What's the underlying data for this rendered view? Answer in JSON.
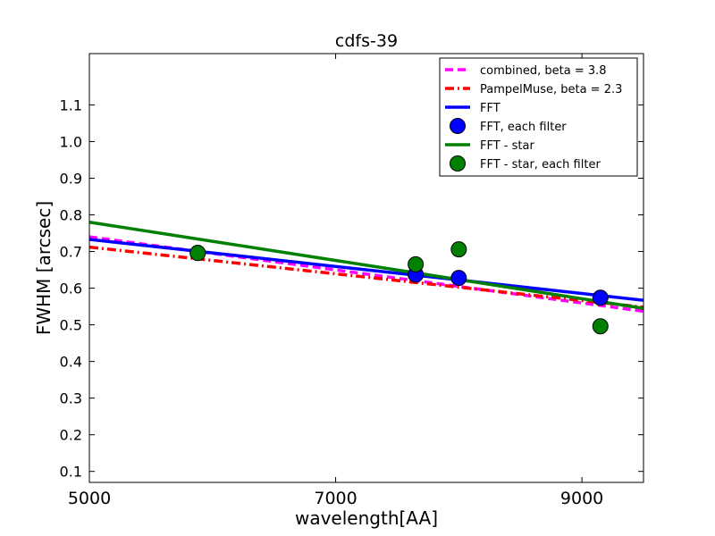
{
  "chart_data": {
    "type": "line",
    "title": "cdfs-39",
    "xlabel": "wavelength[AA]",
    "ylabel": "FWHM [arcsec]",
    "xlim": [
      5000,
      9500
    ],
    "ylim": [
      0.07,
      1.24
    ],
    "xticks": [
      5000,
      7000,
      9000
    ],
    "yticks": [
      0.1,
      0.2,
      0.3,
      0.4,
      0.5,
      0.6,
      0.7,
      0.8,
      0.9,
      1.0,
      1.1
    ],
    "ytick_labels": [
      "0.1",
      "0.2",
      "0.3",
      "0.4",
      "0.5",
      "0.6",
      "0.7",
      "0.8",
      "0.9",
      "1.0",
      "1.1"
    ],
    "grid": false,
    "legend_position": "top-right",
    "series": [
      {
        "name": "combined, beta = 3.8",
        "kind": "line",
        "style": "dashed",
        "color": "#ff00ff",
        "x": [
          5000,
          9500
        ],
        "y": [
          0.74,
          0.537
        ]
      },
      {
        "name": "PampelMuse, beta = 2.3",
        "kind": "line",
        "style": "dashdot",
        "color": "#ff0000",
        "x": [
          5000,
          9500
        ],
        "y": [
          0.712,
          0.548
        ]
      },
      {
        "name": "FFT",
        "kind": "line",
        "style": "solid",
        "color": "#0000ff",
        "x": [
          5000,
          9500
        ],
        "y": [
          0.733,
          0.567
        ]
      },
      {
        "name": "FFT, each filter",
        "kind": "scatter",
        "color": "#0000ff",
        "x": [
          5880,
          7650,
          8000,
          9150
        ],
        "y": [
          0.696,
          0.637,
          0.628,
          0.574
        ]
      },
      {
        "name": "FFT - star",
        "kind": "line",
        "style": "solid",
        "color": "#008000",
        "x": [
          5000,
          9500
        ],
        "y": [
          0.78,
          0.545
        ]
      },
      {
        "name": "FFT - star, each filter",
        "kind": "scatter",
        "color": "#008000",
        "x": [
          5880,
          7650,
          8000,
          9150
        ],
        "y": [
          0.696,
          0.665,
          0.706,
          0.496
        ]
      }
    ]
  }
}
